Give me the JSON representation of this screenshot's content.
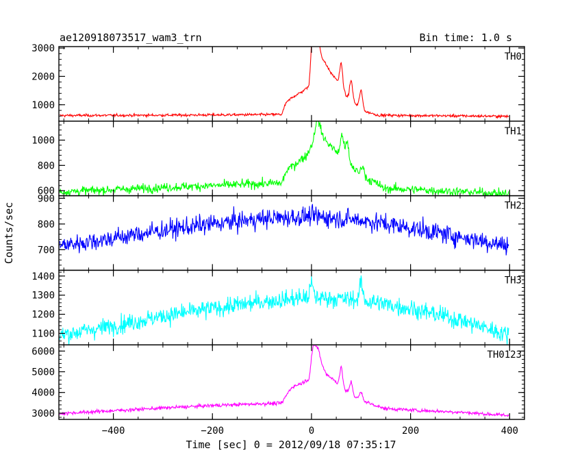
{
  "header": {
    "title": "ae120918073517_wam3_trn",
    "bin_time": "Bin time: 1.0 s"
  },
  "chart_data": {
    "type": "line",
    "xlabel": "Time [sec] 0 = 2012/09/18 07:35:17",
    "ylabel": "Counts/sec",
    "xlim": [
      -510,
      430
    ],
    "x_ticks": [
      -400,
      -200,
      0,
      200,
      400
    ],
    "x_tick_labels": [
      "−400",
      "−200",
      "0",
      "200",
      "400"
    ],
    "panels": [
      {
        "name": "TH0",
        "color": "#ff0000",
        "ylim": [
          420,
          3050
        ],
        "y_ticks": [
          1000,
          2000,
          3000
        ],
        "y_tick_labels": [
          "1000",
          "2000",
          "3000"
        ],
        "background": [
          [
            -510,
            620
          ],
          [
            -300,
            630
          ],
          [
            -100,
            650
          ],
          [
            -60,
            660
          ],
          [
            0,
            650
          ],
          [
            200,
            620
          ],
          [
            400,
            590
          ]
        ],
        "burst": [
          [
            -60,
            650
          ],
          [
            -52,
            1050
          ],
          [
            -40,
            1250
          ],
          [
            -20,
            1450
          ],
          [
            -5,
            1650
          ],
          [
            0,
            2500
          ],
          [
            10,
            2900
          ],
          [
            20,
            2700
          ],
          [
            30,
            2400
          ],
          [
            40,
            2100
          ],
          [
            50,
            1900
          ],
          [
            60,
            1600
          ],
          [
            70,
            1300
          ],
          [
            80,
            1150
          ],
          [
            90,
            1000
          ],
          [
            100,
            900
          ],
          [
            110,
            750
          ],
          [
            130,
            660
          ]
        ],
        "spikes": [
          [
            2,
            700
          ],
          [
            5,
            650
          ],
          [
            14,
            450
          ],
          [
            60,
            850
          ],
          [
            80,
            700
          ],
          [
            100,
            600
          ]
        ],
        "noise": 60
      },
      {
        "name": "TH1",
        "color": "#00ff00",
        "ylim": [
          560,
          1150
        ],
        "y_ticks": [
          600,
          800,
          1000
        ],
        "y_tick_labels": [
          "600",
          "800",
          "1000"
        ],
        "background": [
          [
            -510,
            590
          ],
          [
            -300,
            625
          ],
          [
            -100,
            655
          ],
          [
            -60,
            660
          ],
          [
            0,
            640
          ],
          [
            200,
            610
          ],
          [
            400,
            575
          ]
        ],
        "burst": [
          [
            -60,
            660
          ],
          [
            -50,
            760
          ],
          [
            -30,
            820
          ],
          [
            -10,
            880
          ],
          [
            0,
            960
          ],
          [
            10,
            1060
          ],
          [
            20,
            1050
          ],
          [
            30,
            990
          ],
          [
            40,
            950
          ],
          [
            50,
            910
          ],
          [
            60,
            890
          ],
          [
            70,
            850
          ],
          [
            80,
            800
          ],
          [
            90,
            760
          ],
          [
            100,
            720
          ],
          [
            120,
            680
          ],
          [
            140,
            640
          ]
        ],
        "spikes": [
          [
            10,
            80
          ],
          [
            15,
            70
          ],
          [
            62,
            170
          ],
          [
            72,
            140
          ],
          [
            103,
            90
          ]
        ],
        "noise": 45
      },
      {
        "name": "TH2",
        "color": "#0000ff",
        "ylim": [
          620,
          910
        ],
        "y_ticks": [
          700,
          800,
          900
        ],
        "y_tick_labels": [
          "700",
          "800",
          "900"
        ],
        "background": [
          [
            -510,
            715
          ],
          [
            -400,
            745
          ],
          [
            -300,
            775
          ],
          [
            -200,
            800
          ],
          [
            -100,
            820
          ],
          [
            0,
            830
          ],
          [
            100,
            815
          ],
          [
            200,
            785
          ],
          [
            300,
            750
          ],
          [
            400,
            715
          ]
        ],
        "burst": [],
        "spikes": [],
        "noise": 48
      },
      {
        "name": "TH3",
        "color": "#00ffff",
        "ylim": [
          1040,
          1430
        ],
        "y_ticks": [
          1100,
          1200,
          1300,
          1400
        ],
        "y_tick_labels": [
          "1100",
          "1200",
          "1300",
          "1400"
        ],
        "background": [
          [
            -510,
            1090
          ],
          [
            -400,
            1140
          ],
          [
            -300,
            1190
          ],
          [
            -200,
            1230
          ],
          [
            -100,
            1265
          ],
          [
            0,
            1290
          ],
          [
            100,
            1275
          ],
          [
            200,
            1230
          ],
          [
            300,
            1170
          ],
          [
            400,
            1090
          ]
        ],
        "burst": [],
        "spikes": [
          [
            0,
            70
          ],
          [
            100,
            90
          ]
        ],
        "noise": 60
      },
      {
        "name": "TH0123",
        "color": "#ff00ff",
        "ylim": [
          2700,
          6300
        ],
        "y_ticks": [
          3000,
          4000,
          5000,
          6000
        ],
        "y_tick_labels": [
          "3000",
          "4000",
          "5000",
          "6000"
        ],
        "background": [
          [
            -510,
            2980
          ],
          [
            -400,
            3120
          ],
          [
            -300,
            3250
          ],
          [
            -200,
            3370
          ],
          [
            -100,
            3460
          ],
          [
            -60,
            3480
          ],
          [
            0,
            3420
          ],
          [
            100,
            3300
          ],
          [
            200,
            3150
          ],
          [
            300,
            3050
          ],
          [
            400,
            2880
          ]
        ],
        "burst": [
          [
            -60,
            3480
          ],
          [
            -50,
            3900
          ],
          [
            -40,
            4250
          ],
          [
            -20,
            4450
          ],
          [
            -5,
            4650
          ],
          [
            0,
            5200
          ],
          [
            10,
            5750
          ],
          [
            20,
            5400
          ],
          [
            30,
            4900
          ],
          [
            40,
            4700
          ],
          [
            50,
            4500
          ],
          [
            60,
            4300
          ],
          [
            70,
            4050
          ],
          [
            80,
            3900
          ],
          [
            90,
            3750
          ],
          [
            100,
            3650
          ],
          [
            120,
            3450
          ],
          [
            140,
            3300
          ]
        ],
        "spikes": [
          [
            2,
            600
          ],
          [
            7,
            500
          ],
          [
            14,
            450
          ],
          [
            60,
            900
          ],
          [
            80,
            600
          ],
          [
            100,
            350
          ]
        ],
        "noise": 110
      }
    ]
  }
}
